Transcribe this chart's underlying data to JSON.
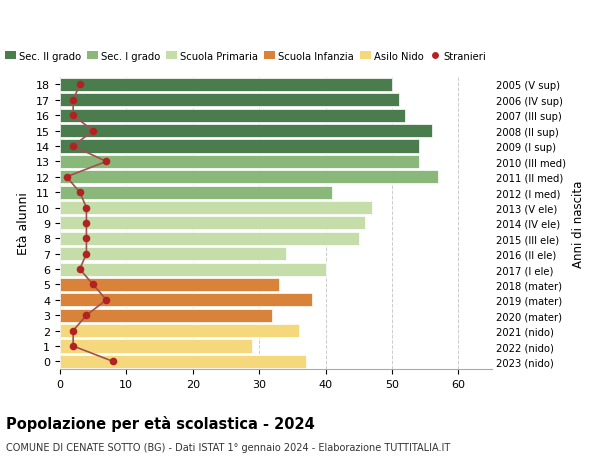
{
  "ages": [
    18,
    17,
    16,
    15,
    14,
    13,
    12,
    11,
    10,
    9,
    8,
    7,
    6,
    5,
    4,
    3,
    2,
    1,
    0
  ],
  "bar_values": [
    50,
    51,
    52,
    56,
    54,
    54,
    57,
    41,
    47,
    46,
    45,
    34,
    40,
    33,
    38,
    32,
    36,
    29,
    37
  ],
  "bar_colors": [
    "#4a7c4e",
    "#4a7c4e",
    "#4a7c4e",
    "#4a7c4e",
    "#4a7c4e",
    "#8ab87a",
    "#8ab87a",
    "#8ab87a",
    "#c5dda8",
    "#c5dda8",
    "#c5dda8",
    "#c5dda8",
    "#c5dda8",
    "#d9833a",
    "#d9833a",
    "#d9833a",
    "#f5d87c",
    "#f5d87c",
    "#f5d87c"
  ],
  "stranieri_values": [
    3,
    2,
    2,
    5,
    2,
    7,
    1,
    3,
    4,
    4,
    4,
    4,
    3,
    5,
    7,
    4,
    2,
    2,
    8
  ],
  "right_labels": [
    "2005 (V sup)",
    "2006 (IV sup)",
    "2007 (III sup)",
    "2008 (II sup)",
    "2009 (I sup)",
    "2010 (III med)",
    "2011 (II med)",
    "2012 (I med)",
    "2013 (V ele)",
    "2014 (IV ele)",
    "2015 (III ele)",
    "2016 (II ele)",
    "2017 (I ele)",
    "2018 (mater)",
    "2019 (mater)",
    "2020 (mater)",
    "2021 (nido)",
    "2022 (nido)",
    "2023 (nido)"
  ],
  "legend_labels": [
    "Sec. II grado",
    "Sec. I grado",
    "Scuola Primaria",
    "Scuola Infanzia",
    "Asilo Nido",
    "Stranieri"
  ],
  "legend_colors": [
    "#4a7c4e",
    "#8ab87a",
    "#c5dda8",
    "#d9833a",
    "#f5d87c",
    "#b22222"
  ],
  "ylabel": "Età alunni",
  "right_ylabel": "Anni di nascita",
  "title": "Popolazione per età scolastica - 2024",
  "subtitle": "COMUNE DI CENATE SOTTO (BG) - Dati ISTAT 1° gennaio 2024 - Elaborazione TUTTITALIA.IT",
  "xlim": [
    0,
    65
  ],
  "background_color": "#ffffff",
  "stranieri_color": "#b22222",
  "stranieri_line_color": "#a05050"
}
